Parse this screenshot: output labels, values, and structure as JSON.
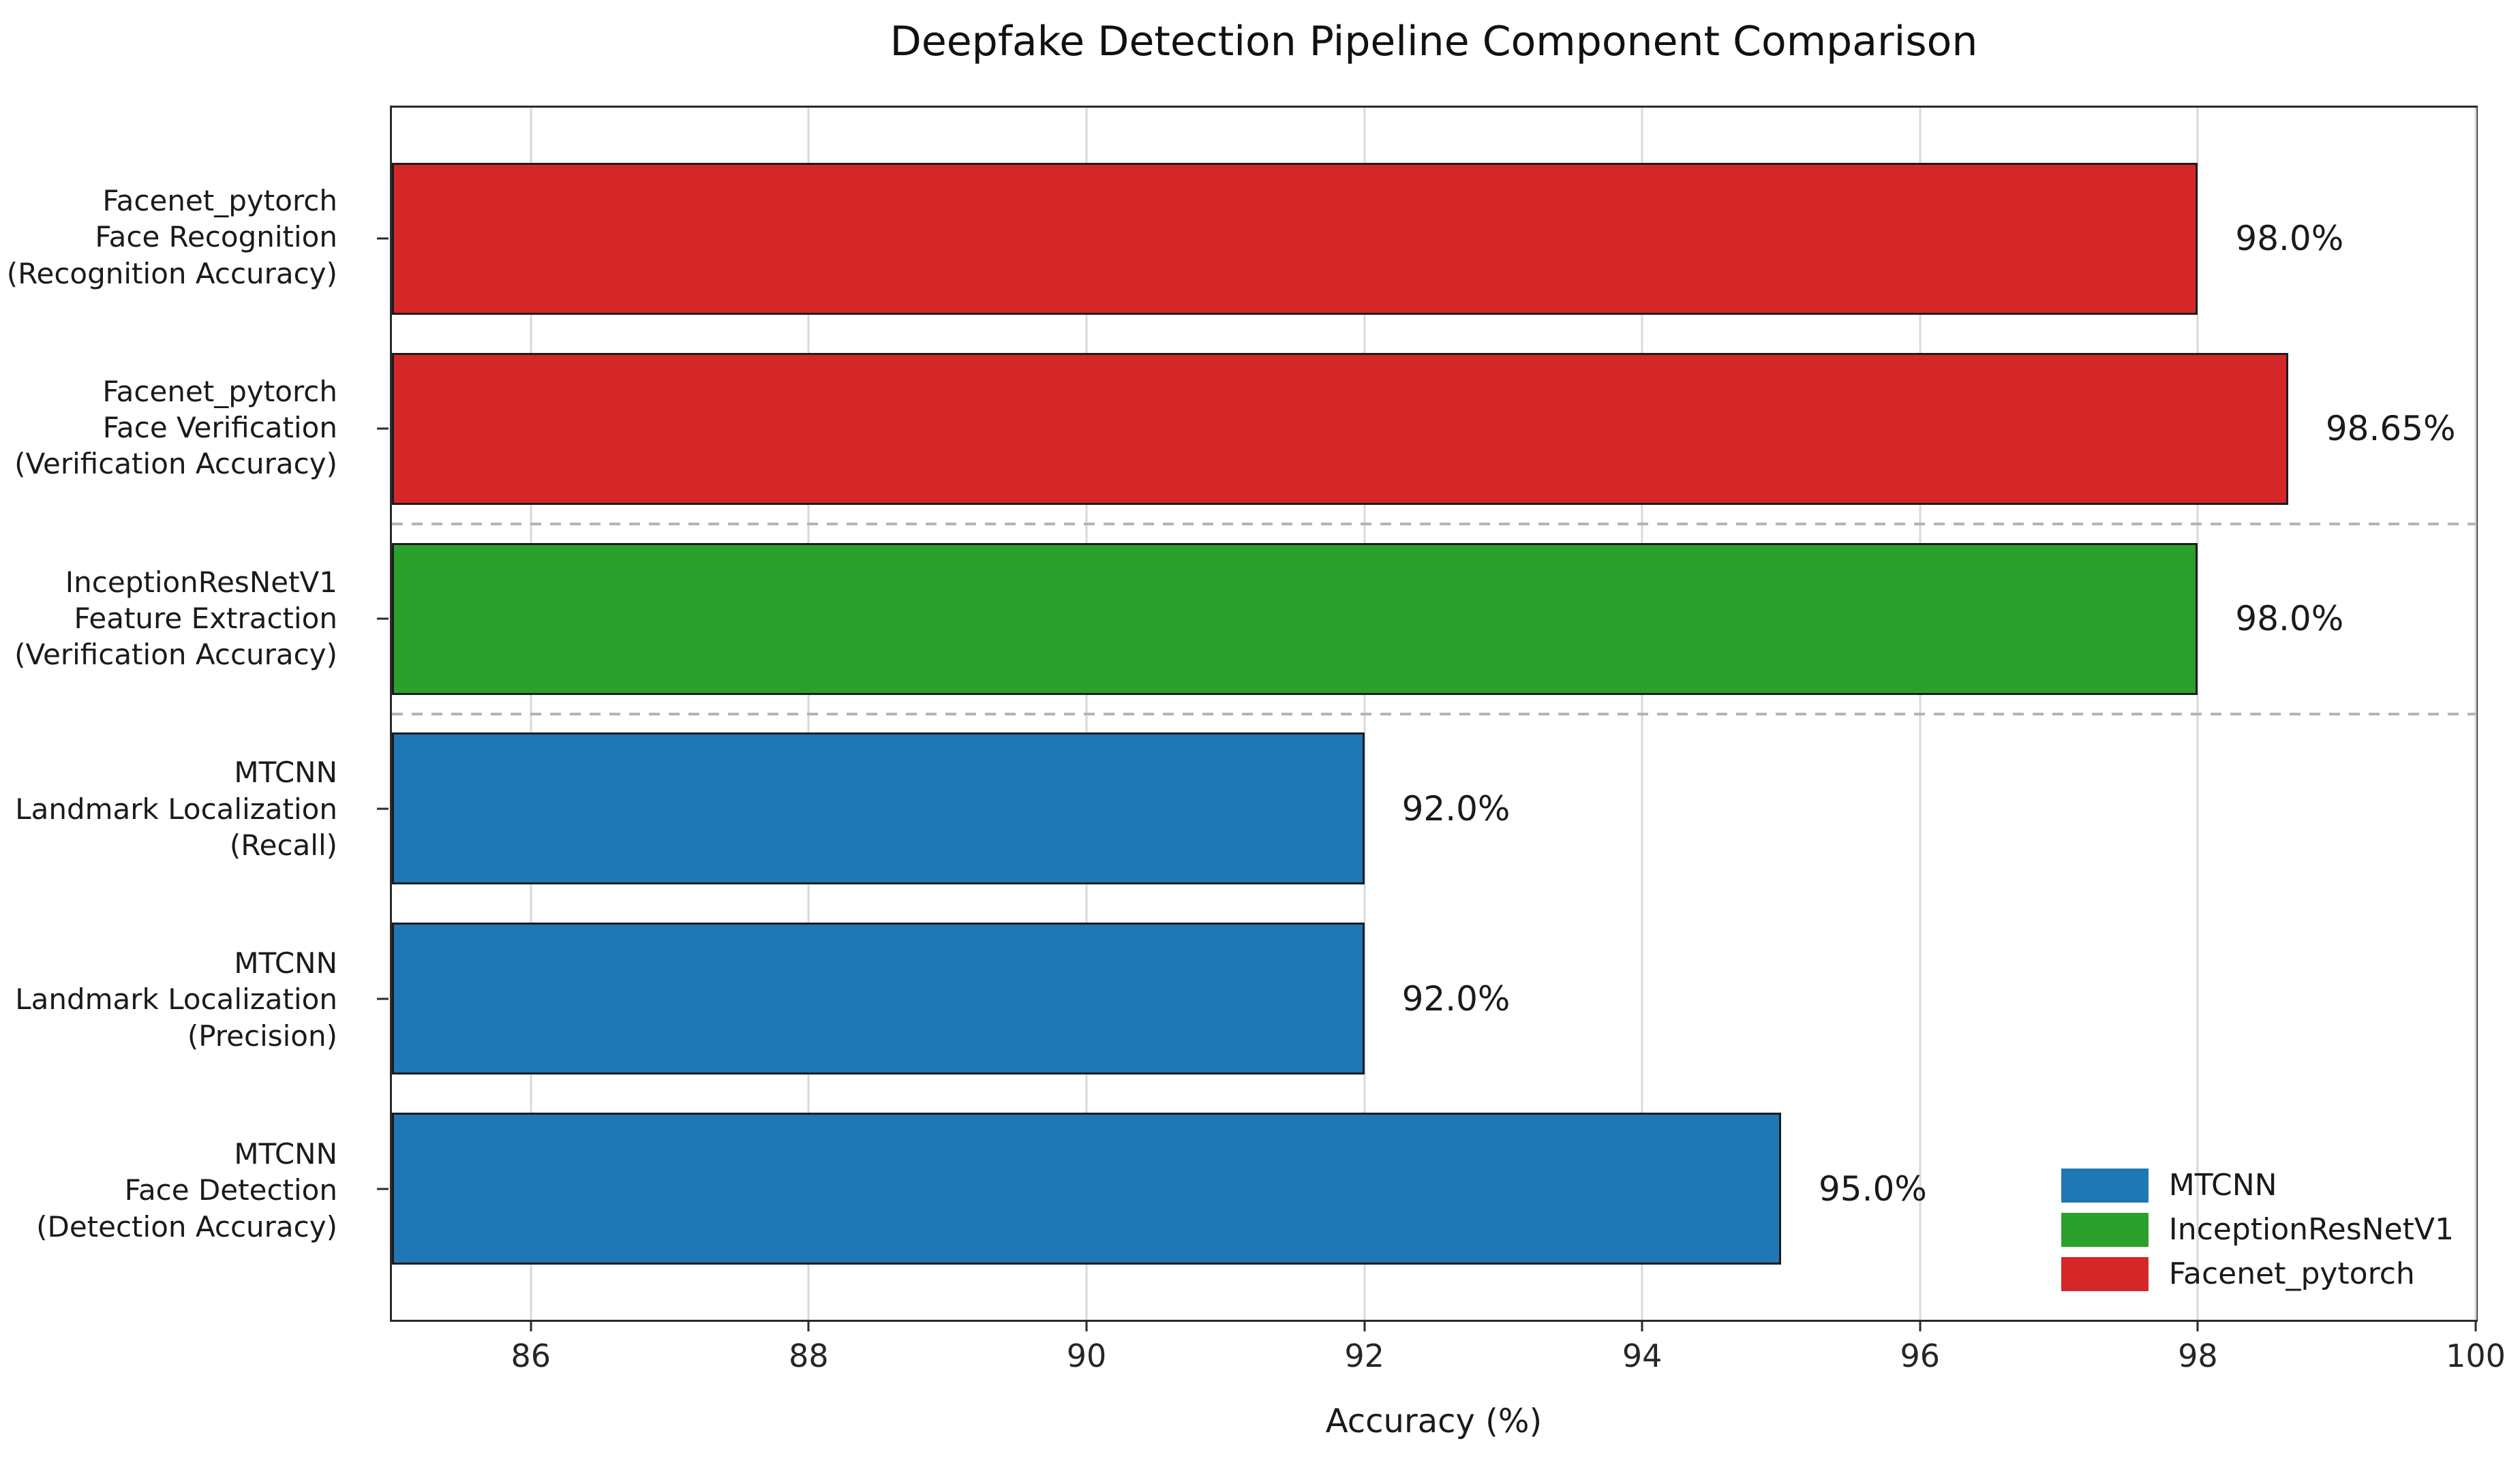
{
  "chart_data": {
    "type": "bar",
    "orientation": "horizontal",
    "title": "Deepfake Detection Pipeline Component Comparison",
    "xlabel": "Accuracy (%)",
    "ylabel": "",
    "xlim": [
      85,
      100
    ],
    "xticks": [
      86,
      88,
      90,
      92,
      94,
      96,
      98,
      100
    ],
    "grid": "vertical light-gray gridlines at x ticks; dashed gray horizontal separators between model groups",
    "bars": [
      {
        "category": "Facenet_pytorch\nFace Recognition\n(Recognition Accuracy)",
        "series": "Facenet_pytorch",
        "value": 98.0,
        "value_label": "98.0%"
      },
      {
        "category": "Facenet_pytorch\nFace Verification\n(Verification Accuracy)",
        "series": "Facenet_pytorch",
        "value": 98.65,
        "value_label": "98.65%"
      },
      {
        "category": "InceptionResNetV1\nFeature Extraction\n(Verification Accuracy)",
        "series": "InceptionResNetV1",
        "value": 98.0,
        "value_label": "98.0%"
      },
      {
        "category": "MTCNN\nLandmark Localization\n(Recall)",
        "series": "MTCNN",
        "value": 92.0,
        "value_label": "92.0%"
      },
      {
        "category": "MTCNN\nLandmark Localization\n(Precision)",
        "series": "MTCNN",
        "value": 92.0,
        "value_label": "92.0%"
      },
      {
        "category": "MTCNN\nFace Detection\n(Detection Accuracy)",
        "series": "MTCNN",
        "value": 95.0,
        "value_label": "95.0%"
      }
    ],
    "separators": [
      1.5,
      2.5
    ],
    "series_colors": {
      "MTCNN": "#1f77b4",
      "InceptionResNetV1": "#2ca02c",
      "Facenet_pytorch": "#d62728"
    },
    "legend": {
      "position": "lower right",
      "entries": [
        {
          "label": "MTCNN",
          "color": "#1f77b4"
        },
        {
          "label": "InceptionResNetV1",
          "color": "#2ca02c"
        },
        {
          "label": "Facenet_pytorch",
          "color": "#d62728"
        }
      ]
    }
  }
}
